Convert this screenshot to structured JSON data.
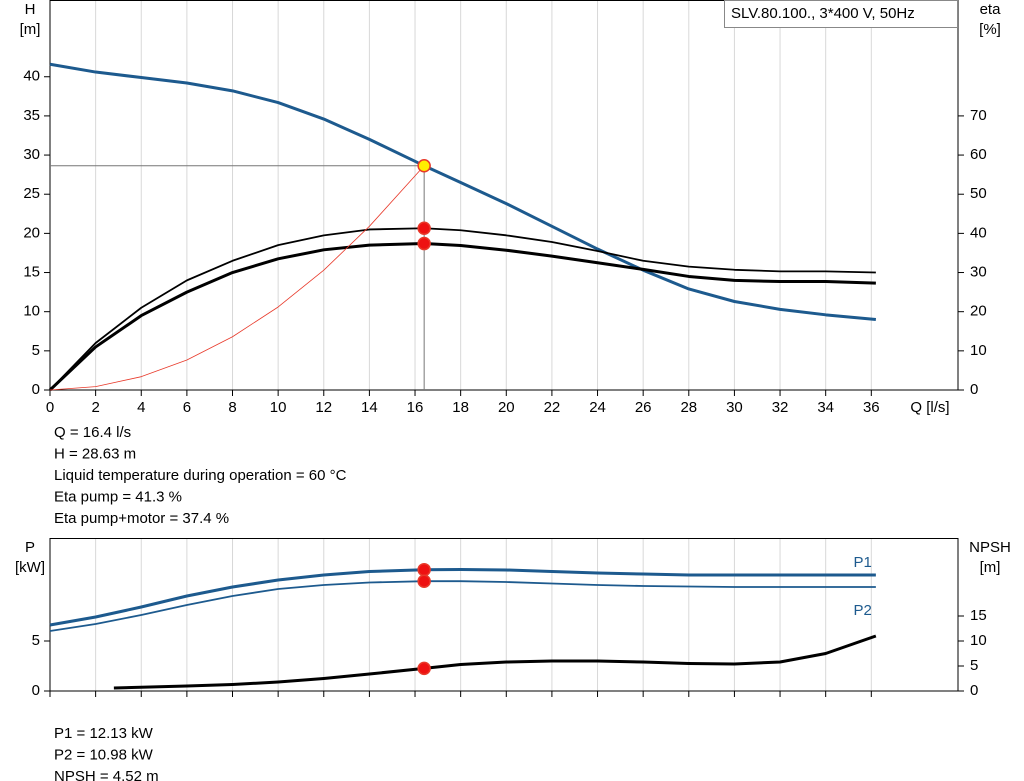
{
  "chart_data": [
    {
      "type": "line",
      "title": "SLV.80.100., 3*400 V, 50Hz",
      "ylabel": "H",
      "yunit": "[m]",
      "y2label": "eta",
      "y2unit": "[%]",
      "xlabel": "Q [l/s]",
      "xlim": [
        0,
        39.8
      ],
      "xticks": [
        0,
        2,
        4,
        6,
        8,
        10,
        12,
        14,
        16,
        18,
        20,
        22,
        24,
        26,
        28,
        30,
        32,
        34,
        36
      ],
      "ylim": [
        0,
        49.8
      ],
      "yticks": [
        0,
        5,
        10,
        15,
        20,
        25,
        30,
        35,
        40
      ],
      "y2lim": [
        0,
        99.6
      ],
      "y2ticks": [
        0,
        10,
        20,
        30,
        40,
        50,
        60,
        70
      ],
      "grid": true,
      "series": [
        {
          "color": "#1d5a8e",
          "line_width": 3,
          "x": [
            0,
            2,
            4,
            6,
            8,
            10,
            12,
            14,
            16,
            16.4,
            18,
            20,
            22,
            24,
            26,
            28,
            30,
            32,
            34,
            36.2
          ],
          "values": [
            41.6,
            40.6,
            39.9,
            39.2,
            38.2,
            36.7,
            34.6,
            32,
            29.2,
            28.63,
            26.5,
            23.8,
            20.9,
            18,
            15.3,
            12.9,
            11.3,
            10.3,
            9.6,
            9
          ]
        },
        {
          "color": "#000000",
          "line_width": 1.8,
          "axis": "y2",
          "x": [
            0,
            2,
            4,
            6,
            8,
            10,
            12,
            14,
            16.4,
            18,
            20,
            22,
            24,
            26,
            28,
            30,
            32,
            34,
            36.2
          ],
          "values": [
            0,
            12,
            21,
            28,
            33,
            37,
            39.5,
            41,
            41.3,
            40.8,
            39.5,
            37.8,
            35.5,
            33,
            31.5,
            30.7,
            30.3,
            30.3,
            30
          ]
        },
        {
          "color": "#000000",
          "line_width": 3,
          "axis": "y2",
          "x": [
            0,
            2,
            4,
            6,
            8,
            10,
            12,
            14,
            16.4,
            18,
            20,
            22,
            24,
            26,
            28,
            30,
            32,
            34,
            36.2
          ],
          "values": [
            0,
            11,
            19,
            25,
            30,
            33.5,
            35.8,
            37,
            37.4,
            36.9,
            35.7,
            34.2,
            32.5,
            30.8,
            29,
            28,
            27.7,
            27.7,
            27.3
          ]
        },
        {
          "color": "#e8392a",
          "line_width": 0.8,
          "x": [
            0,
            2,
            4,
            6,
            8,
            10,
            12,
            14,
            16.4
          ],
          "values": [
            0,
            0.43,
            1.7,
            3.83,
            6.8,
            10.6,
            15.3,
            20.9,
            28.63
          ]
        }
      ],
      "duty_point": {
        "x": 16.4,
        "values": [
          28.63,
          41.3,
          37.4
        ],
        "colors": [
          "#ffee00",
          "#ee1111",
          "#ee1111"
        ]
      },
      "annotations": [
        "Q = 16.4 l/s",
        "H = 28.63 m",
        "Liquid temperature during operation = 60 °C",
        "Eta pump = 41.3 %",
        "Eta pump+motor = 37.4 %"
      ]
    },
    {
      "type": "line",
      "ylabel": "P",
      "yunit": "[kW]",
      "y2label": "NPSH",
      "y2unit": "[m]",
      "xlim": [
        0,
        39.8
      ],
      "xticks": [
        0,
        2,
        4,
        6,
        8,
        10,
        12,
        14,
        16,
        18,
        20,
        22,
        24,
        26,
        28,
        30,
        32,
        34,
        36
      ],
      "ylim": [
        0,
        15.3
      ],
      "yticks": [
        0,
        5
      ],
      "y2lim": [
        0,
        30.6
      ],
      "y2ticks": [
        0,
        5,
        10,
        15
      ],
      "grid": true,
      "series": [
        {
          "name": "P1",
          "color": "#1d5a8e",
          "line_width": 3,
          "x": [
            0,
            2,
            4,
            6,
            8,
            10,
            12,
            14,
            16.4,
            18,
            20,
            22,
            24,
            26,
            28,
            30,
            32,
            34,
            36.2
          ],
          "values": [
            6.6,
            7.4,
            8.4,
            9.5,
            10.4,
            11.1,
            11.6,
            11.95,
            12.13,
            12.15,
            12.1,
            11.95,
            11.8,
            11.7,
            11.6,
            11.6,
            11.6,
            11.6,
            11.6
          ]
        },
        {
          "name": "P2",
          "color": "#1d5a8e",
          "line_width": 1.8,
          "x": [
            0,
            2,
            4,
            6,
            8,
            10,
            12,
            14,
            16.4,
            18,
            20,
            22,
            24,
            26,
            28,
            30,
            32,
            34,
            36.2
          ],
          "values": [
            6,
            6.7,
            7.6,
            8.6,
            9.5,
            10.2,
            10.6,
            10.85,
            10.98,
            10.98,
            10.9,
            10.75,
            10.6,
            10.5,
            10.45,
            10.4,
            10.4,
            10.4,
            10.4
          ]
        },
        {
          "color": "#000000",
          "line_width": 3,
          "axis": "y2",
          "x": [
            2.8,
            6,
            8,
            10,
            12,
            14,
            16.4,
            18,
            20,
            22,
            24,
            26,
            28,
            30,
            32,
            34,
            36.2
          ],
          "values": [
            0.6,
            1,
            1.3,
            1.8,
            2.5,
            3.4,
            4.52,
            5.3,
            5.8,
            6,
            6,
            5.8,
            5.5,
            5.4,
            5.8,
            7.5,
            11
          ]
        }
      ],
      "duty_point": {
        "x": 16.4,
        "values": [
          12.13,
          10.98,
          4.52
        ],
        "colors": [
          "#ee1111",
          "#ee1111",
          "#ee1111"
        ]
      },
      "annotations": [
        "P1 = 12.13 kW",
        "P2 = 10.98 kW",
        "NPSH = 4.52 m"
      ]
    }
  ]
}
